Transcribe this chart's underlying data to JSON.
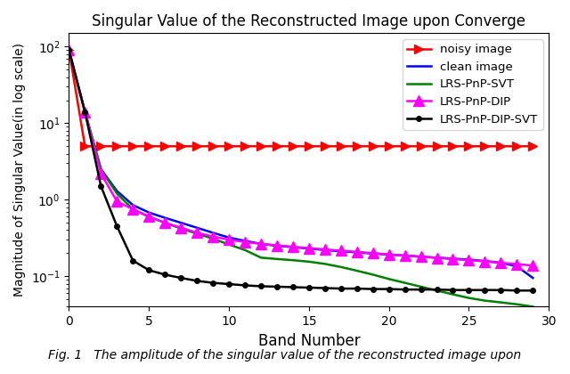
{
  "title": "Singular Value of the Reconstructed Image upon Converge",
  "xlabel": "Band Number",
  "ylabel": "Magnitude of Singular Value(in log scale)",
  "xlim": [
    0,
    29
  ],
  "ylim_log": [
    0.04,
    150
  ],
  "legend": [
    "noisy image",
    "clean image",
    "LRS-PnP-SVT",
    "LRS-PnP-DIP",
    "LRS-PnP-DIP-SVT"
  ],
  "noisy_image": {
    "x": [
      0,
      1,
      2,
      3,
      4,
      5,
      6,
      7,
      8,
      9,
      10,
      11,
      12,
      13,
      14,
      15,
      16,
      17,
      18,
      19,
      20,
      21,
      22,
      23,
      24,
      25,
      26,
      27,
      28,
      29
    ],
    "y": [
      90,
      5.0,
      5.0,
      5.0,
      5.0,
      5.0,
      5.0,
      5.0,
      5.0,
      5.0,
      5.0,
      5.0,
      5.0,
      5.0,
      5.0,
      5.0,
      5.0,
      5.0,
      5.0,
      5.0,
      5.0,
      5.0,
      5.0,
      5.0,
      5.0,
      5.0,
      5.0,
      5.0,
      5.0,
      5.0
    ],
    "color": "#FF0000",
    "marker": ">",
    "markersize": 7,
    "linewidth": 1.8
  },
  "clean_image": {
    "x": [
      0,
      1,
      2,
      3,
      4,
      5,
      6,
      7,
      8,
      9,
      10,
      11,
      12,
      13,
      14,
      15,
      16,
      17,
      18,
      19,
      20,
      21,
      22,
      23,
      24,
      25,
      26,
      27,
      28,
      29
    ],
    "y": [
      90,
      14,
      2.5,
      1.3,
      0.85,
      0.68,
      0.58,
      0.5,
      0.43,
      0.37,
      0.32,
      0.29,
      0.265,
      0.25,
      0.24,
      0.23,
      0.22,
      0.212,
      0.205,
      0.198,
      0.192,
      0.186,
      0.18,
      0.175,
      0.17,
      0.165,
      0.158,
      0.15,
      0.135,
      0.095
    ],
    "color": "#0000FF",
    "linewidth": 1.8
  },
  "lrs_pnp_svt": {
    "x": [
      0,
      1,
      2,
      3,
      4,
      5,
      6,
      7,
      8,
      9,
      10,
      11,
      12,
      13,
      14,
      15,
      16,
      17,
      18,
      19,
      20,
      21,
      22,
      23,
      24,
      25,
      26,
      27,
      28,
      29
    ],
    "y": [
      90,
      14,
      2.5,
      1.2,
      0.75,
      0.6,
      0.5,
      0.42,
      0.36,
      0.31,
      0.26,
      0.22,
      0.175,
      0.168,
      0.162,
      0.155,
      0.145,
      0.132,
      0.118,
      0.105,
      0.092,
      0.082,
      0.073,
      0.065,
      0.058,
      0.052,
      0.048,
      0.0455,
      0.043,
      0.04
    ],
    "color": "#008000",
    "linewidth": 1.8
  },
  "lrs_pnp_dip": {
    "x": [
      0,
      1,
      2,
      3,
      4,
      5,
      6,
      7,
      8,
      9,
      10,
      11,
      12,
      13,
      14,
      15,
      16,
      17,
      18,
      19,
      20,
      21,
      22,
      23,
      24,
      25,
      26,
      27,
      28,
      29
    ],
    "y": [
      90,
      14,
      2.2,
      0.95,
      0.75,
      0.6,
      0.5,
      0.43,
      0.37,
      0.33,
      0.3,
      0.28,
      0.265,
      0.253,
      0.243,
      0.233,
      0.224,
      0.216,
      0.208,
      0.2,
      0.193,
      0.186,
      0.18,
      0.174,
      0.168,
      0.162,
      0.156,
      0.15,
      0.144,
      0.138
    ],
    "color": "#FF00FF",
    "marker": "^",
    "markersize": 8,
    "linewidth": 1.8
  },
  "lrs_pnp_dip_svt": {
    "x": [
      0,
      1,
      2,
      3,
      4,
      5,
      6,
      7,
      8,
      9,
      10,
      11,
      12,
      13,
      14,
      15,
      16,
      17,
      18,
      19,
      20,
      21,
      22,
      23,
      24,
      25,
      26,
      27,
      28,
      29
    ],
    "y": [
      90,
      14,
      1.5,
      0.45,
      0.16,
      0.12,
      0.105,
      0.095,
      0.087,
      0.082,
      0.079,
      0.076,
      0.074,
      0.073,
      0.072,
      0.071,
      0.07,
      0.069,
      0.069,
      0.068,
      0.068,
      0.067,
      0.067,
      0.067,
      0.066,
      0.066,
      0.066,
      0.066,
      0.065,
      0.065
    ],
    "color": "#000000",
    "marker": "o",
    "markersize": 4,
    "linewidth": 1.8
  },
  "caption": "Fig. 1   The amplitude of the singular value of the reconstructed image upon"
}
